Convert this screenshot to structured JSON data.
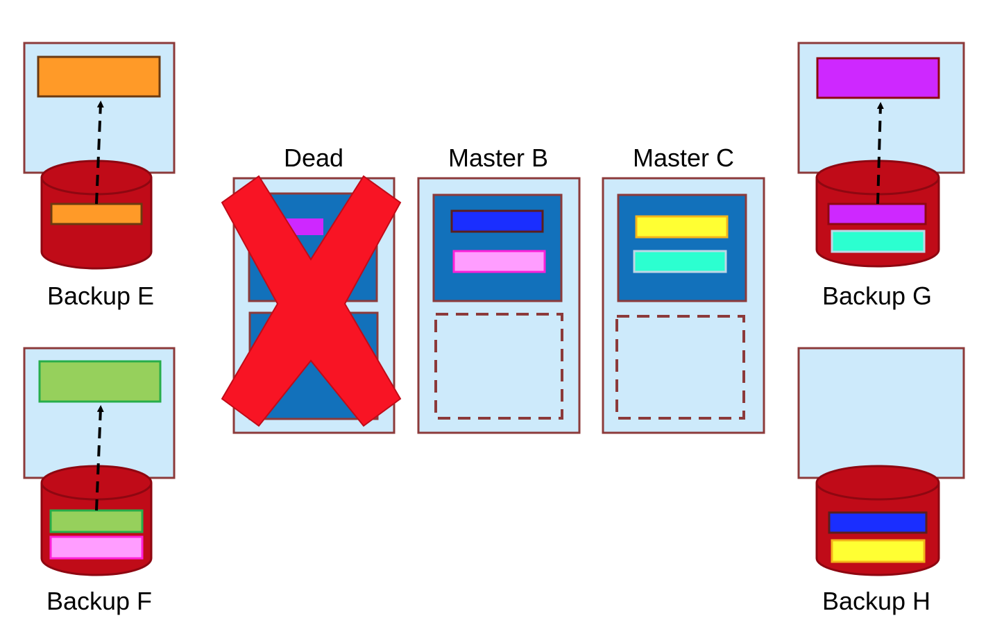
{
  "labels": {
    "dead": "Dead",
    "master_b": "Master B",
    "master_c": "Master C",
    "backup_e": "Backup E",
    "backup_f": "Backup F",
    "backup_g": "Backup G",
    "backup_h": "Backup H"
  },
  "colors": {
    "server_fill": "#cdeafb",
    "border": "#8c3a3a",
    "segment_fill": "#1271bb",
    "disk_fill": "#c00b18",
    "disk_dark": "#8e0711",
    "dead_cross": "#f81424",
    "orange": "#ff9a28",
    "green": "#96d05c",
    "magenta": "#ce28ff",
    "teal": "#2cffd0",
    "blue": "#1a2eff",
    "pink": "#ff9dff",
    "yellow": "#ffff33"
  },
  "icons": {
    "dead_marker": "x-mark-icon",
    "disk": "cylinder-disk-icon",
    "arrow": "dashed-arrow-up-icon"
  }
}
